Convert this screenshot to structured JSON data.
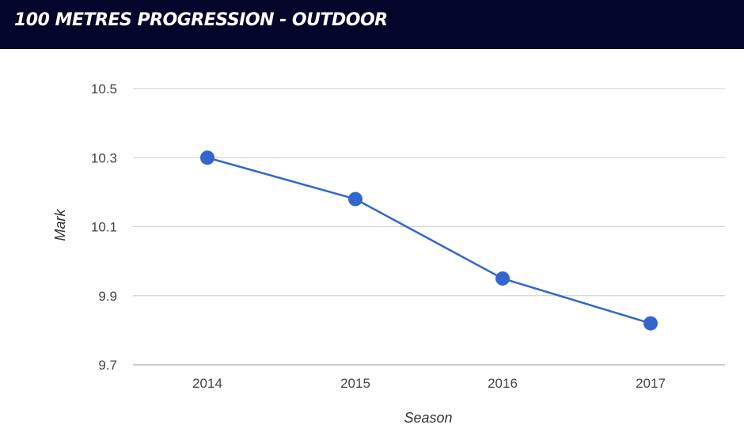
{
  "header": {
    "title": "100 METRES PROGRESSION - OUTDOOR"
  },
  "colors": {
    "header_bg": "#04052b",
    "series": "#3366cc",
    "grid": "#cccccc"
  },
  "chart_data": {
    "type": "line",
    "title": "100 METRES PROGRESSION - OUTDOOR",
    "xlabel": "Season",
    "ylabel": "Mark",
    "categories": [
      "2014",
      "2015",
      "2016",
      "2017"
    ],
    "series": [
      {
        "values": [
          10.3,
          10.18,
          9.95,
          9.82
        ]
      }
    ],
    "ylim": [
      9.7,
      10.5
    ],
    "yticks": [
      "9.7",
      "9.9",
      "10.1",
      "10.3",
      "10.5"
    ],
    "grid": true,
    "legend": "none"
  }
}
